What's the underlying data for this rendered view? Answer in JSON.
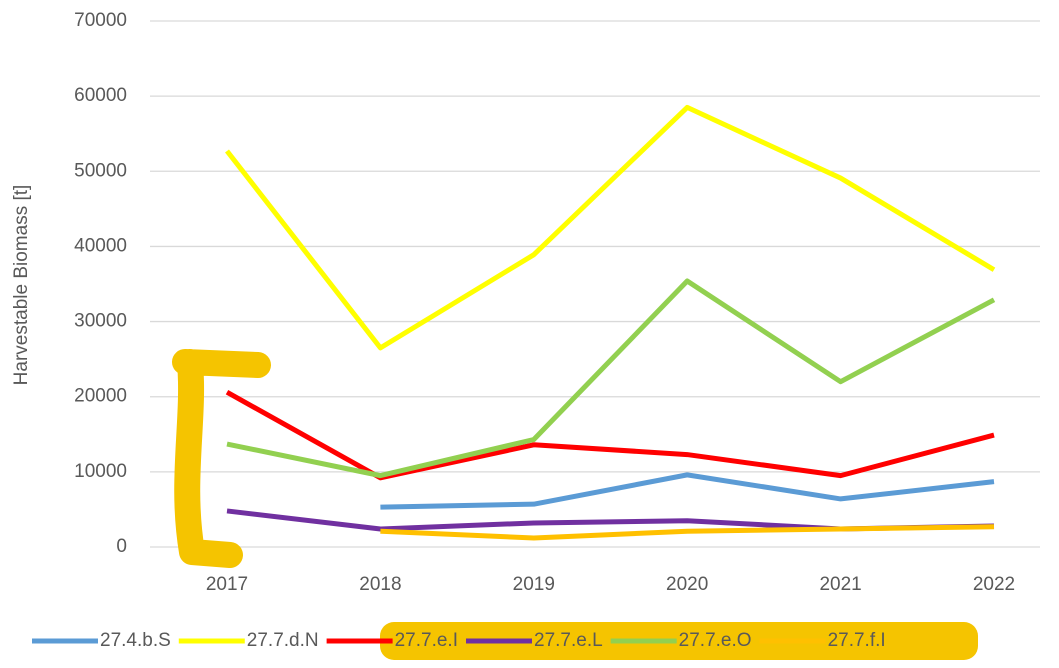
{
  "chart_data": {
    "type": "line",
    "y_label": "Harvestable Biomass  [t]",
    "categories": [
      "2017",
      "2018",
      "2019",
      "2020",
      "2021",
      "2022"
    ],
    "series": [
      {
        "name": "27.4.b.S",
        "color": "#5b9bd5",
        "values": [
          null,
          5300,
          5700,
          9600,
          6400,
          8700
        ]
      },
      {
        "name": "27.7.d.N",
        "color": "#ffff00",
        "values": [
          52700,
          26500,
          38900,
          58500,
          49100,
          36900
        ]
      },
      {
        "name": "27.7.e.I",
        "color": "#ff0000",
        "values": [
          20600,
          9200,
          13600,
          12300,
          9500,
          14900
        ]
      },
      {
        "name": "27.7.e.L",
        "color": "#7030a0",
        "values": [
          4800,
          2400,
          3200,
          3500,
          2400,
          2800
        ]
      },
      {
        "name": "27.7.e.O",
        "color": "#92d050",
        "values": [
          13700,
          9500,
          14300,
          35400,
          22000,
          32900
        ]
      },
      {
        "name": "27.7.f.I",
        "color": "#ffc000",
        "values": [
          null,
          2100,
          1200,
          2100,
          2400,
          2700
        ]
      }
    ],
    "ylim": [
      0,
      70000
    ],
    "yticks": [
      0,
      10000,
      20000,
      30000,
      40000,
      50000,
      60000,
      70000
    ],
    "grid": true
  }
}
